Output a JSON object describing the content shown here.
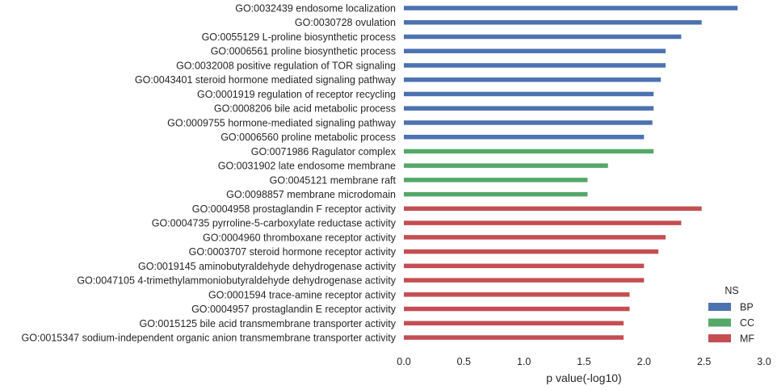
{
  "chart_data": {
    "type": "bar",
    "orientation": "horizontal",
    "xlabel": "p value(-log10)",
    "xlim": [
      0,
      3.0
    ],
    "xticks": [
      "0.0",
      "0.5",
      "1.0",
      "1.5",
      "2.0",
      "2.5",
      "3.0"
    ],
    "grid": false,
    "legend": {
      "title": "NS",
      "placement": "lower-right",
      "entries": [
        {
          "name": "BP",
          "color": "#4c72b0"
        },
        {
          "name": "CC",
          "color": "#55a868"
        },
        {
          "name": "MF",
          "color": "#c44e52"
        }
      ]
    },
    "bars": [
      {
        "label": "GO:0032439 endosome localization",
        "value": 2.78,
        "group": "BP"
      },
      {
        "label": "GO:0030728 ovulation",
        "value": 2.48,
        "group": "BP"
      },
      {
        "label": "GO:0055129 L-proline biosynthetic process",
        "value": 2.31,
        "group": "BP"
      },
      {
        "label": "GO:0006561 proline biosynthetic process",
        "value": 2.18,
        "group": "BP"
      },
      {
        "label": "GO:0032008 positive regulation of TOR signaling",
        "value": 2.18,
        "group": "BP"
      },
      {
        "label": "GO:0043401 steroid hormone mediated signaling pathway",
        "value": 2.14,
        "group": "BP"
      },
      {
        "label": "GO:0001919 regulation of receptor recycling",
        "value": 2.08,
        "group": "BP"
      },
      {
        "label": "GO:0008206 bile acid metabolic process",
        "value": 2.08,
        "group": "BP"
      },
      {
        "label": "GO:0009755 hormone-mediated signaling pathway",
        "value": 2.07,
        "group": "BP"
      },
      {
        "label": "GO:0006560 proline metabolic process",
        "value": 2.0,
        "group": "BP"
      },
      {
        "label": "GO:0071986 Ragulator complex",
        "value": 2.08,
        "group": "CC"
      },
      {
        "label": "GO:0031902 late endosome membrane",
        "value": 1.7,
        "group": "CC"
      },
      {
        "label": "GO:0045121 membrane raft",
        "value": 1.53,
        "group": "CC"
      },
      {
        "label": "GO:0098857 membrane microdomain",
        "value": 1.53,
        "group": "CC"
      },
      {
        "label": "GO:0004958 prostaglandin F receptor activity",
        "value": 2.48,
        "group": "MF"
      },
      {
        "label": "GO:0004735 pyrroline-5-carboxylate reductase activity",
        "value": 2.31,
        "group": "MF"
      },
      {
        "label": "GO:0004960 thromboxane receptor activity",
        "value": 2.18,
        "group": "MF"
      },
      {
        "label": "GO:0003707 steroid hormone receptor activity",
        "value": 2.12,
        "group": "MF"
      },
      {
        "label": "GO:0019145 aminobutyraldehyde dehydrogenase activity",
        "value": 2.0,
        "group": "MF"
      },
      {
        "label": "GO:0047105 4-trimethylammoniobutyraldehyde dehydrogenase activity",
        "value": 2.0,
        "group": "MF"
      },
      {
        "label": "GO:0001594 trace-amine receptor activity",
        "value": 1.88,
        "group": "MF"
      },
      {
        "label": "GO:0004957 prostaglandin E receptor activity",
        "value": 1.88,
        "group": "MF"
      },
      {
        "label": "GO:0015125 bile acid transmembrane transporter activity",
        "value": 1.83,
        "group": "MF"
      },
      {
        "label": "GO:0015347 sodium-independent organic anion transmembrane transporter activity",
        "value": 1.83,
        "group": "MF"
      }
    ]
  }
}
